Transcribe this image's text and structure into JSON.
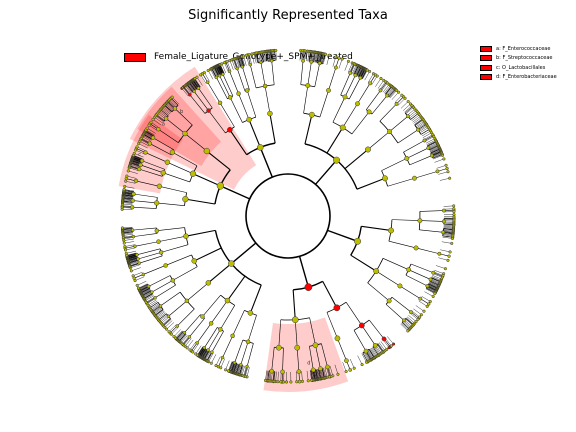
{
  "chart_data": {
    "type": "cladogram",
    "title": "Significantly Represented Taxa",
    "class_legend": [
      {
        "name": "Female_Ligature_Genotype+_SPM+_Treated",
        "color": "#ff0000"
      }
    ],
    "taxa_legend": [
      {
        "label": "a: F_Enterococcaceae",
        "color": "#ff0000"
      },
      {
        "label": "b: F_Streptococcaceae",
        "color": "#ff0000"
      },
      {
        "label": "c: O_Lactobacillales",
        "color": "#ff0000"
      },
      {
        "label": "d: F_Enterobacteriaceae",
        "color": "#ff0000"
      }
    ],
    "highlighted_clades": [
      {
        "letter": "a",
        "taxon": "F_Enterococcaceae",
        "color": "#ff0000"
      },
      {
        "letter": "b",
        "taxon": "F_Streptococcaceae",
        "color": "#ff0000"
      },
      {
        "letter": "c",
        "taxon": "O_Lactobacillales",
        "color": "#ff0000"
      },
      {
        "letter": "d",
        "taxon": "F_Enterobacteriaceae",
        "color": "#ff0000"
      }
    ],
    "node_color_default": "#bdbd00",
    "node_color_significant": "#ff0000"
  }
}
